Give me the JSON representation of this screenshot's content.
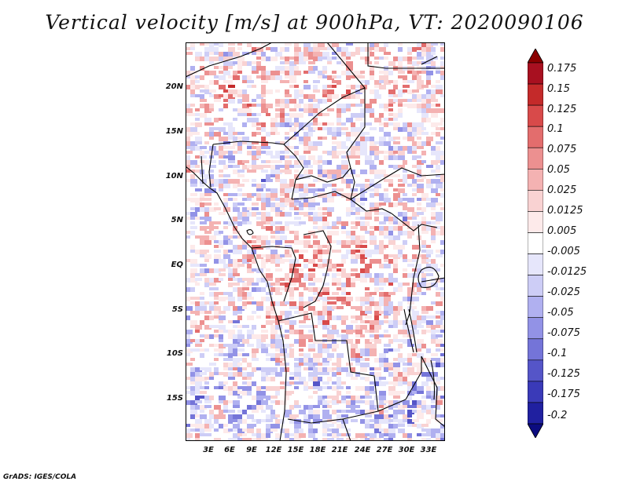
{
  "title": "Vertical velocity [m/s] at 900hPa, VT: 2020090106",
  "footer": "GrADS: IGES/COLA",
  "colors": {
    "positive_strong": "#b2182b",
    "positive_light": "#f4a6a6",
    "negative_strong": "#2b2bb5",
    "negative_light": "#b4b4f0",
    "border": "#000000"
  },
  "map": {
    "projection": "lat-lon",
    "lon_range": [
      0,
      35
    ],
    "lat_range": [
      -20,
      25
    ],
    "y_ticks": [
      "20N",
      "15N",
      "10N",
      "5N",
      "EQ",
      "5S",
      "10S",
      "15S"
    ],
    "x_ticks": [
      "3E",
      "6E",
      "9E",
      "12E",
      "15E",
      "18E",
      "21E",
      "24E",
      "27E",
      "30E",
      "33E"
    ]
  },
  "colorbar": {
    "orientation": "vertical",
    "extend": "both",
    "levels": [
      "0.175",
      "0.15",
      "0.125",
      "0.1",
      "0.075",
      "0.05",
      "0.025",
      "0.0125",
      "0.005",
      "-0.005",
      "-0.0125",
      "-0.025",
      "-0.05",
      "-0.075",
      "-0.1",
      "-0.125",
      "-0.175",
      "-0.2"
    ],
    "colors": [
      "#8b0000",
      "#a81020",
      "#c42a2a",
      "#d84a4a",
      "#e36d6d",
      "#ec9090",
      "#f4b2b2",
      "#f9d2d2",
      "#fdeaea",
      "#ffffff",
      "#e6e6fb",
      "#cdcdf6",
      "#b0b0f0",
      "#9292e6",
      "#7474d8",
      "#5555c8",
      "#3a3ab8",
      "#2020a0",
      "#0c0c80"
    ]
  }
}
